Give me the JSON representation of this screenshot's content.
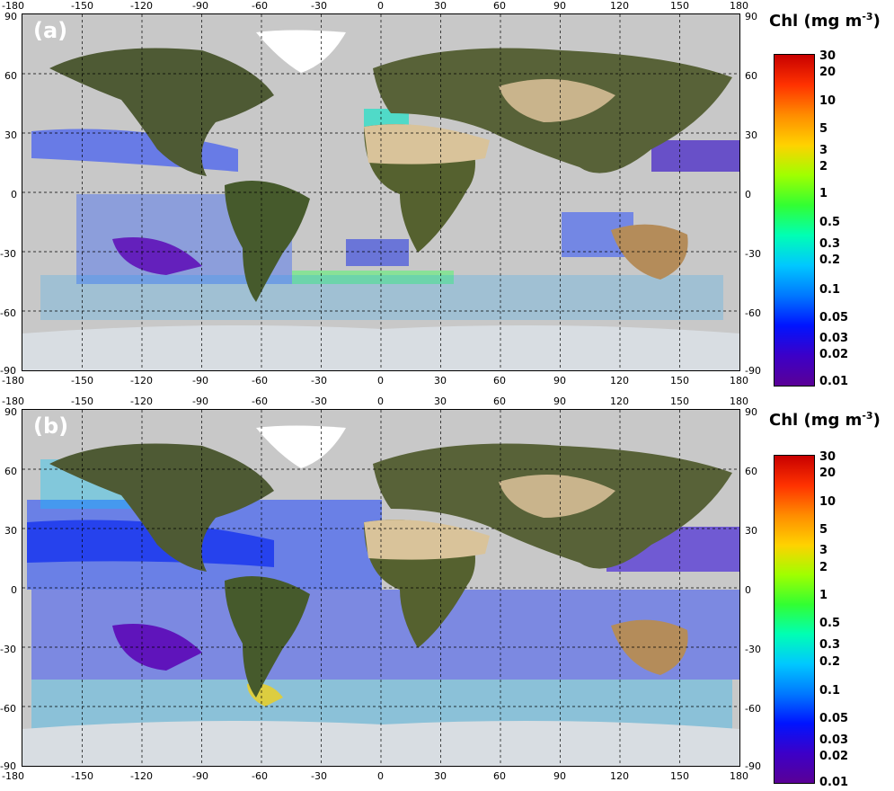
{
  "panels": [
    {
      "id": "a",
      "label": "(a)",
      "colorbar_title": "Chl (mg m",
      "colorbar_exp": "-3",
      "colorbar_close": ")",
      "colorbar_ticks": [
        "30",
        "20",
        "10",
        "5",
        "3",
        "2",
        "1",
        "0.5",
        "0.3",
        "0.2",
        "0.1",
        "0.05",
        "0.03",
        "0.02",
        "0.01"
      ]
    },
    {
      "id": "b",
      "label": "(b)",
      "colorbar_title": "Chl (mg m",
      "colorbar_exp": "-3",
      "colorbar_close": ")",
      "colorbar_ticks": [
        "30",
        "20",
        "10",
        "5",
        "3",
        "2",
        "1",
        "0.5",
        "0.3",
        "0.2",
        "0.1",
        "0.05",
        "0.03",
        "0.02",
        "0.01"
      ]
    }
  ],
  "lon_ticks": [
    "-180",
    "-150",
    "-120",
    "-90",
    "-60",
    "-30",
    "0",
    "30",
    "60",
    "90",
    "120",
    "150",
    "180"
  ],
  "lat_ticks": [
    "90",
    "60",
    "30",
    "0",
    "-30",
    "-60",
    "-90"
  ],
  "colorbar_gradient": [
    "#5a0096",
    "#3c00c8",
    "#0014ff",
    "#0078ff",
    "#00c8ff",
    "#00ffb4",
    "#32ff32",
    "#a0ff00",
    "#ffd200",
    "#ff8c00",
    "#ff3200",
    "#c80000"
  ],
  "colors": {
    "no_data": "#c8c8c8",
    "land": "#4e5a34",
    "desert": "#d9c39a",
    "ice": "#ffffff",
    "antarctica": "#d8dde2"
  }
}
